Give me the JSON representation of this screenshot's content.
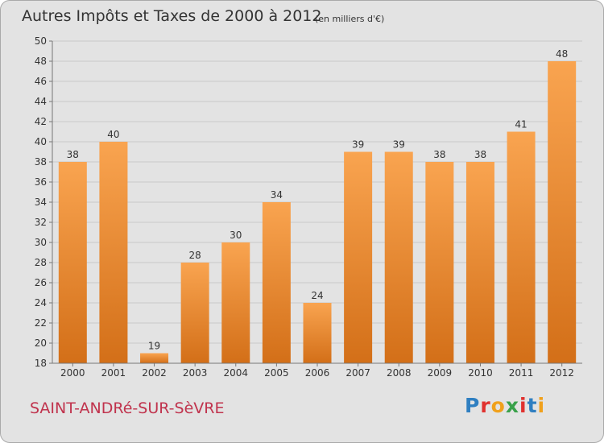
{
  "chart_data": {
    "type": "bar",
    "title": "Autres Impôts et Taxes de 2000 à 2012",
    "subtitle": "(en milliers d'€)",
    "categories": [
      "2000",
      "2001",
      "2002",
      "2003",
      "2004",
      "2005",
      "2006",
      "2007",
      "2008",
      "2009",
      "2010",
      "2011",
      "2012"
    ],
    "values": [
      38,
      40,
      19,
      28,
      30,
      34,
      24,
      39,
      39,
      38,
      38,
      41,
      48
    ],
    "ylim": [
      18,
      50
    ],
    "yticks": [
      18,
      20,
      22,
      24,
      26,
      28,
      30,
      32,
      34,
      36,
      38,
      40,
      42,
      44,
      46,
      48,
      50
    ],
    "grid": true,
    "bar_color_top": "#f9a450",
    "bar_color_bottom": "#d36f18"
  },
  "footer": {
    "location": "SAINT-ANDRé-SUR-SèVRE",
    "location_color": "#c0334d",
    "brand": "Proxiti"
  }
}
